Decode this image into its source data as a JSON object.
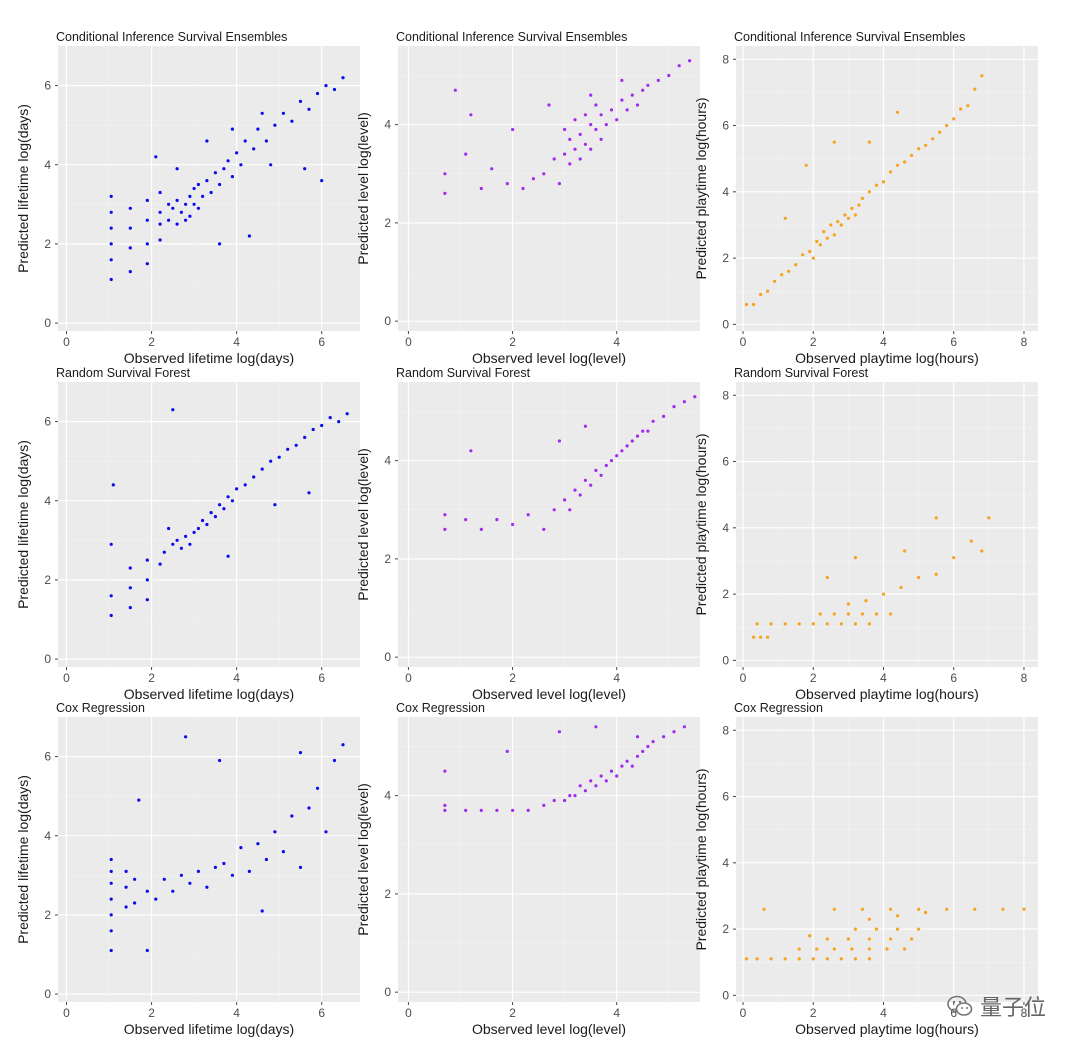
{
  "chart_data": [
    {
      "type": "scatter",
      "row": 0,
      "col": 0,
      "title": "Conditional Inference Survival Ensembles",
      "xlabel": "Observed lifetime log(days)",
      "ylabel": "Predicted lifetime log(days)",
      "xlim": [
        -0.2,
        6.9
      ],
      "ylim": [
        -0.2,
        7.0
      ],
      "xticks": [
        0,
        2,
        4,
        6
      ],
      "yticks": [
        0,
        2,
        4,
        6
      ],
      "color": "#0a0aef",
      "x": [
        1.05,
        1.05,
        1.05,
        1.05,
        1.05,
        1.05,
        1.5,
        1.5,
        1.5,
        1.5,
        1.9,
        1.9,
        1.9,
        1.9,
        2.2,
        2.2,
        2.2,
        2.2,
        2.4,
        2.4,
        2.5,
        2.6,
        2.6,
        2.7,
        2.8,
        2.8,
        2.9,
        2.9,
        3.0,
        3.0,
        3.1,
        3.1,
        3.2,
        3.3,
        3.4,
        3.5,
        3.6,
        3.7,
        3.8,
        3.9,
        4.0,
        4.1,
        4.2,
        4.4,
        4.5,
        4.7,
        4.9,
        5.1,
        5.3,
        5.5,
        5.7,
        5.9,
        6.1,
        6.3,
        6.5,
        3.6,
        4.3,
        4.8,
        5.6,
        6.0,
        2.1,
        2.6,
        3.3,
        3.9,
        4.6
      ],
      "y": [
        1.1,
        1.6,
        2.0,
        2.4,
        2.8,
        3.2,
        1.3,
        1.9,
        2.4,
        2.9,
        1.5,
        2.0,
        2.6,
        3.1,
        2.1,
        2.5,
        2.8,
        3.3,
        2.6,
        3.0,
        2.9,
        2.5,
        3.1,
        2.8,
        3.0,
        2.6,
        3.2,
        2.7,
        3.0,
        3.4,
        2.9,
        3.5,
        3.2,
        3.6,
        3.3,
        3.8,
        3.5,
        3.9,
        4.1,
        3.7,
        4.3,
        4.0,
        4.6,
        4.4,
        4.9,
        4.6,
        5.0,
        5.3,
        5.1,
        5.6,
        5.4,
        5.8,
        6.0,
        5.9,
        6.2,
        2.0,
        2.2,
        4.0,
        3.9,
        3.6,
        4.2,
        3.9,
        4.6,
        4.9,
        5.3
      ]
    },
    {
      "type": "scatter",
      "row": 0,
      "col": 1,
      "title": "Conditional Inference Survival Ensembles",
      "xlabel": "Observed level log(level)",
      "ylabel": "Predicted level log(level)",
      "xlim": [
        -0.2,
        5.6
      ],
      "ylim": [
        -0.2,
        5.6
      ],
      "xticks": [
        0,
        2,
        4
      ],
      "yticks": [
        0,
        2,
        4
      ],
      "color": "#a12bee",
      "x": [
        0.7,
        0.7,
        0.9,
        1.1,
        1.4,
        1.6,
        1.9,
        2.2,
        2.4,
        2.6,
        2.8,
        2.9,
        3.0,
        3.0,
        3.1,
        3.1,
        3.2,
        3.2,
        3.3,
        3.3,
        3.4,
        3.4,
        3.5,
        3.5,
        3.6,
        3.6,
        3.7,
        3.7,
        3.8,
        3.9,
        4.0,
        4.1,
        4.2,
        4.3,
        4.4,
        4.5,
        4.6,
        4.8,
        5.0,
        5.2,
        5.4,
        1.2,
        2.0,
        2.7,
        3.5,
        4.1
      ],
      "y": [
        2.6,
        3.0,
        4.7,
        3.4,
        2.7,
        3.1,
        2.8,
        2.7,
        2.9,
        3.0,
        3.3,
        2.8,
        3.4,
        3.9,
        3.2,
        3.7,
        3.5,
        4.1,
        3.3,
        3.8,
        3.6,
        4.2,
        3.5,
        4.0,
        3.9,
        4.4,
        3.7,
        4.2,
        4.0,
        4.3,
        4.1,
        4.5,
        4.3,
        4.6,
        4.4,
        4.7,
        4.8,
        4.9,
        5.0,
        5.2,
        5.3,
        4.2,
        3.9,
        4.4,
        4.6,
        4.9
      ]
    },
    {
      "type": "scatter",
      "row": 0,
      "col": 2,
      "title": "Conditional Inference Survival Ensembles",
      "xlabel": "Observed playtime log(hours)",
      "ylabel": "Predicted playtime log(hours)",
      "xlim": [
        -0.2,
        8.4
      ],
      "ylim": [
        -0.2,
        8.4
      ],
      "xticks": [
        0,
        2,
        4,
        6,
        8
      ],
      "yticks": [
        0,
        2,
        4,
        6,
        8
      ],
      "color": "#f7a21b",
      "x": [
        0.1,
        0.3,
        0.5,
        0.7,
        0.9,
        1.1,
        1.3,
        1.5,
        1.7,
        1.9,
        2.0,
        2.1,
        2.2,
        2.3,
        2.4,
        2.5,
        2.6,
        2.7,
        2.8,
        2.9,
        3.0,
        3.1,
        3.2,
        3.3,
        3.4,
        3.6,
        3.8,
        4.0,
        4.2,
        4.4,
        4.6,
        4.8,
        5.0,
        5.2,
        5.4,
        5.6,
        5.8,
        6.0,
        6.2,
        6.4,
        6.6,
        6.8,
        1.2,
        1.8,
        2.6,
        3.6,
        4.4
      ],
      "y": [
        0.6,
        0.6,
        0.9,
        1.0,
        1.3,
        1.5,
        1.6,
        1.8,
        2.1,
        2.2,
        2.0,
        2.5,
        2.4,
        2.8,
        2.6,
        3.0,
        2.7,
        3.1,
        3.0,
        3.3,
        3.2,
        3.5,
        3.3,
        3.6,
        3.8,
        4.0,
        4.2,
        4.3,
        4.6,
        4.8,
        4.9,
        5.1,
        5.3,
        5.4,
        5.6,
        5.8,
        6.0,
        6.2,
        6.5,
        6.6,
        7.1,
        7.5,
        3.2,
        4.8,
        5.5,
        5.5,
        6.4
      ]
    },
    {
      "type": "scatter",
      "row": 1,
      "col": 0,
      "title": "Random Survival Forest",
      "xlabel": "Observed lifetime log(days)",
      "ylabel": "Predicted lifetime log(days)",
      "xlim": [
        -0.2,
        6.9
      ],
      "ylim": [
        -0.2,
        7.0
      ],
      "xticks": [
        0,
        2,
        4,
        6
      ],
      "yticks": [
        0,
        2,
        4,
        6
      ],
      "color": "#0a0aef",
      "x": [
        1.05,
        1.05,
        1.05,
        1.5,
        1.5,
        1.5,
        1.9,
        1.9,
        1.9,
        2.2,
        2.3,
        2.4,
        2.5,
        2.6,
        2.7,
        2.8,
        2.9,
        3.0,
        3.1,
        3.2,
        3.3,
        3.4,
        3.5,
        3.6,
        3.7,
        3.8,
        3.9,
        4.0,
        4.2,
        4.4,
        4.6,
        4.8,
        5.0,
        5.2,
        5.4,
        5.6,
        5.8,
        6.0,
        6.2,
        6.4,
        6.6,
        1.1,
        2.5,
        3.8,
        4.9,
        5.7
      ],
      "y": [
        1.1,
        1.6,
        2.9,
        1.3,
        1.8,
        2.3,
        1.5,
        2.0,
        2.5,
        2.4,
        2.7,
        3.3,
        2.9,
        3.0,
        2.8,
        3.1,
        2.9,
        3.2,
        3.3,
        3.5,
        3.4,
        3.7,
        3.6,
        3.9,
        3.8,
        4.1,
        4.0,
        4.3,
        4.4,
        4.6,
        4.8,
        5.0,
        5.1,
        5.3,
        5.4,
        5.6,
        5.8,
        5.9,
        6.1,
        6.0,
        6.2,
        4.4,
        6.3,
        2.6,
        3.9,
        4.2
      ]
    },
    {
      "type": "scatter",
      "row": 1,
      "col": 1,
      "title": "Random Survival Forest",
      "xlabel": "Observed level log(level)",
      "ylabel": "Predicted level log(level)",
      "xlim": [
        -0.2,
        5.6
      ],
      "ylim": [
        -0.2,
        5.6
      ],
      "xticks": [
        0,
        2,
        4
      ],
      "yticks": [
        0,
        2,
        4
      ],
      "color": "#a12bee",
      "x": [
        0.7,
        0.7,
        1.1,
        1.4,
        1.7,
        2.0,
        2.3,
        2.6,
        2.8,
        3.0,
        3.1,
        3.2,
        3.3,
        3.4,
        3.5,
        3.6,
        3.7,
        3.8,
        3.9,
        4.0,
        4.1,
        4.2,
        4.3,
        4.4,
        4.5,
        4.6,
        4.7,
        4.9,
        5.1,
        5.3,
        5.5,
        1.2,
        2.9,
        3.4
      ],
      "y": [
        2.6,
        2.9,
        2.8,
        2.6,
        2.8,
        2.7,
        2.9,
        2.6,
        3.0,
        3.2,
        3.0,
        3.4,
        3.3,
        3.6,
        3.5,
        3.8,
        3.7,
        3.9,
        4.0,
        4.1,
        4.2,
        4.3,
        4.4,
        4.5,
        4.6,
        4.6,
        4.8,
        4.9,
        5.1,
        5.2,
        5.3,
        4.2,
        4.4,
        4.7
      ]
    },
    {
      "type": "scatter",
      "row": 1,
      "col": 2,
      "title": "Random Survival Forest",
      "xlabel": "Observed playtime log(hours)",
      "ylabel": "Predicted playtime log(hours)",
      "xlim": [
        -0.2,
        8.4
      ],
      "ylim": [
        -0.2,
        8.4
      ],
      "xticks": [
        0,
        2,
        4,
        6,
        8
      ],
      "yticks": [
        0,
        2,
        4,
        6,
        8
      ],
      "color": "#f7a21b",
      "x": [
        0.3,
        0.5,
        0.7,
        0.4,
        0.8,
        1.2,
        1.6,
        2.0,
        2.4,
        2.8,
        3.2,
        3.6,
        2.2,
        2.6,
        3.0,
        3.4,
        3.8,
        4.2,
        3.0,
        3.5,
        4.0,
        4.5,
        5.0,
        5.5,
        6.0,
        6.5,
        7.0,
        2.4,
        3.2,
        4.6,
        5.5,
        6.8
      ],
      "y": [
        0.7,
        0.7,
        0.7,
        1.1,
        1.1,
        1.1,
        1.1,
        1.1,
        1.1,
        1.1,
        1.1,
        1.1,
        1.4,
        1.4,
        1.4,
        1.4,
        1.4,
        1.4,
        1.7,
        1.8,
        2.0,
        2.2,
        2.5,
        2.6,
        3.1,
        3.6,
        4.3,
        2.5,
        3.1,
        3.3,
        4.3,
        3.3
      ]
    },
    {
      "type": "scatter",
      "row": 2,
      "col": 0,
      "title": "Cox Regression",
      "xlabel": "Observed lifetime log(days)",
      "ylabel": "Predicted lifetime log(days)",
      "xlim": [
        -0.2,
        6.9
      ],
      "ylim": [
        -0.2,
        7.0
      ],
      "xticks": [
        0,
        2,
        4,
        6
      ],
      "yticks": [
        0,
        2,
        4,
        6
      ],
      "color": "#0a0aef",
      "x": [
        1.05,
        1.05,
        1.05,
        1.05,
        1.05,
        1.05,
        1.05,
        1.4,
        1.4,
        1.4,
        1.6,
        1.6,
        1.9,
        1.9,
        2.1,
        2.3,
        2.5,
        2.7,
        2.9,
        3.1,
        3.3,
        3.5,
        3.7,
        3.9,
        4.1,
        4.3,
        4.5,
        4.7,
        4.9,
        5.1,
        5.3,
        5.5,
        5.7,
        5.9,
        6.1,
        6.3,
        6.5,
        1.7,
        2.8,
        3.6,
        4.6,
        5.5
      ],
      "y": [
        1.1,
        1.6,
        2.0,
        2.4,
        2.8,
        3.1,
        3.4,
        2.2,
        2.7,
        3.1,
        2.3,
        2.9,
        1.1,
        2.6,
        2.4,
        2.9,
        2.6,
        3.0,
        2.8,
        3.1,
        2.7,
        3.2,
        3.3,
        3.0,
        3.7,
        3.1,
        3.8,
        3.4,
        4.1,
        3.6,
        4.5,
        3.2,
        4.7,
        5.2,
        4.1,
        5.9,
        6.3,
        4.9,
        6.5,
        5.9,
        2.1,
        6.1
      ]
    },
    {
      "type": "scatter",
      "row": 2,
      "col": 1,
      "title": "Cox Regression",
      "xlabel": "Observed level log(level)",
      "ylabel": "Predicted level log(level)",
      "xlim": [
        -0.2,
        5.6
      ],
      "ylim": [
        -0.2,
        5.6
      ],
      "xticks": [
        0,
        2,
        4
      ],
      "yticks": [
        0,
        2,
        4
      ],
      "color": "#a12bee",
      "x": [
        0.7,
        0.7,
        1.1,
        1.4,
        1.7,
        2.0,
        2.3,
        2.6,
        2.8,
        3.0,
        3.1,
        3.2,
        3.3,
        3.4,
        3.5,
        3.6,
        3.7,
        3.8,
        3.9,
        4.0,
        4.1,
        4.2,
        4.3,
        4.4,
        4.5,
        4.6,
        4.7,
        4.9,
        5.1,
        5.3,
        0.7,
        1.9,
        2.9,
        3.6,
        4.4
      ],
      "y": [
        3.7,
        3.8,
        3.7,
        3.7,
        3.7,
        3.7,
        3.7,
        3.8,
        3.9,
        3.9,
        4.0,
        4.0,
        4.2,
        4.1,
        4.3,
        4.2,
        4.4,
        4.3,
        4.5,
        4.4,
        4.6,
        4.7,
        4.6,
        4.8,
        4.9,
        5.0,
        5.1,
        5.2,
        5.3,
        5.4,
        4.5,
        4.9,
        5.3,
        5.4,
        5.2
      ]
    },
    {
      "type": "scatter",
      "row": 2,
      "col": 2,
      "title": "Cox Regression",
      "xlabel": "Observed playtime log(hours)",
      "ylabel": "Predicted playtime log(hours)",
      "xlim": [
        -0.2,
        8.4
      ],
      "ylim": [
        -0.2,
        8.4
      ],
      "xticks": [
        0,
        2,
        4,
        6,
        8
      ],
      "yticks": [
        0,
        2,
        4,
        6,
        8
      ],
      "color": "#f7a21b",
      "x": [
        0.1,
        0.4,
        0.8,
        1.2,
        1.6,
        2.0,
        2.4,
        2.8,
        3.2,
        3.6,
        1.6,
        2.1,
        2.6,
        3.1,
        3.6,
        4.1,
        4.6,
        2.4,
        3.0,
        3.6,
        4.2,
        4.8,
        3.2,
        3.8,
        4.4,
        5.0,
        2.6,
        3.4,
        4.2,
        5.0,
        5.8,
        6.6,
        7.4,
        8.0,
        3.6,
        4.4,
        5.2,
        0.6,
        1.9
      ],
      "y": [
        1.1,
        1.1,
        1.1,
        1.1,
        1.1,
        1.1,
        1.1,
        1.1,
        1.1,
        1.1,
        1.4,
        1.4,
        1.4,
        1.4,
        1.4,
        1.4,
        1.4,
        1.7,
        1.7,
        1.7,
        1.7,
        1.7,
        2.0,
        2.0,
        2.0,
        2.0,
        2.6,
        2.6,
        2.6,
        2.6,
        2.6,
        2.6,
        2.6,
        2.6,
        2.3,
        2.4,
        2.5,
        2.6,
        1.8
      ]
    }
  ],
  "watermark": {
    "text": "量子位",
    "icon": "wechat-icon"
  }
}
